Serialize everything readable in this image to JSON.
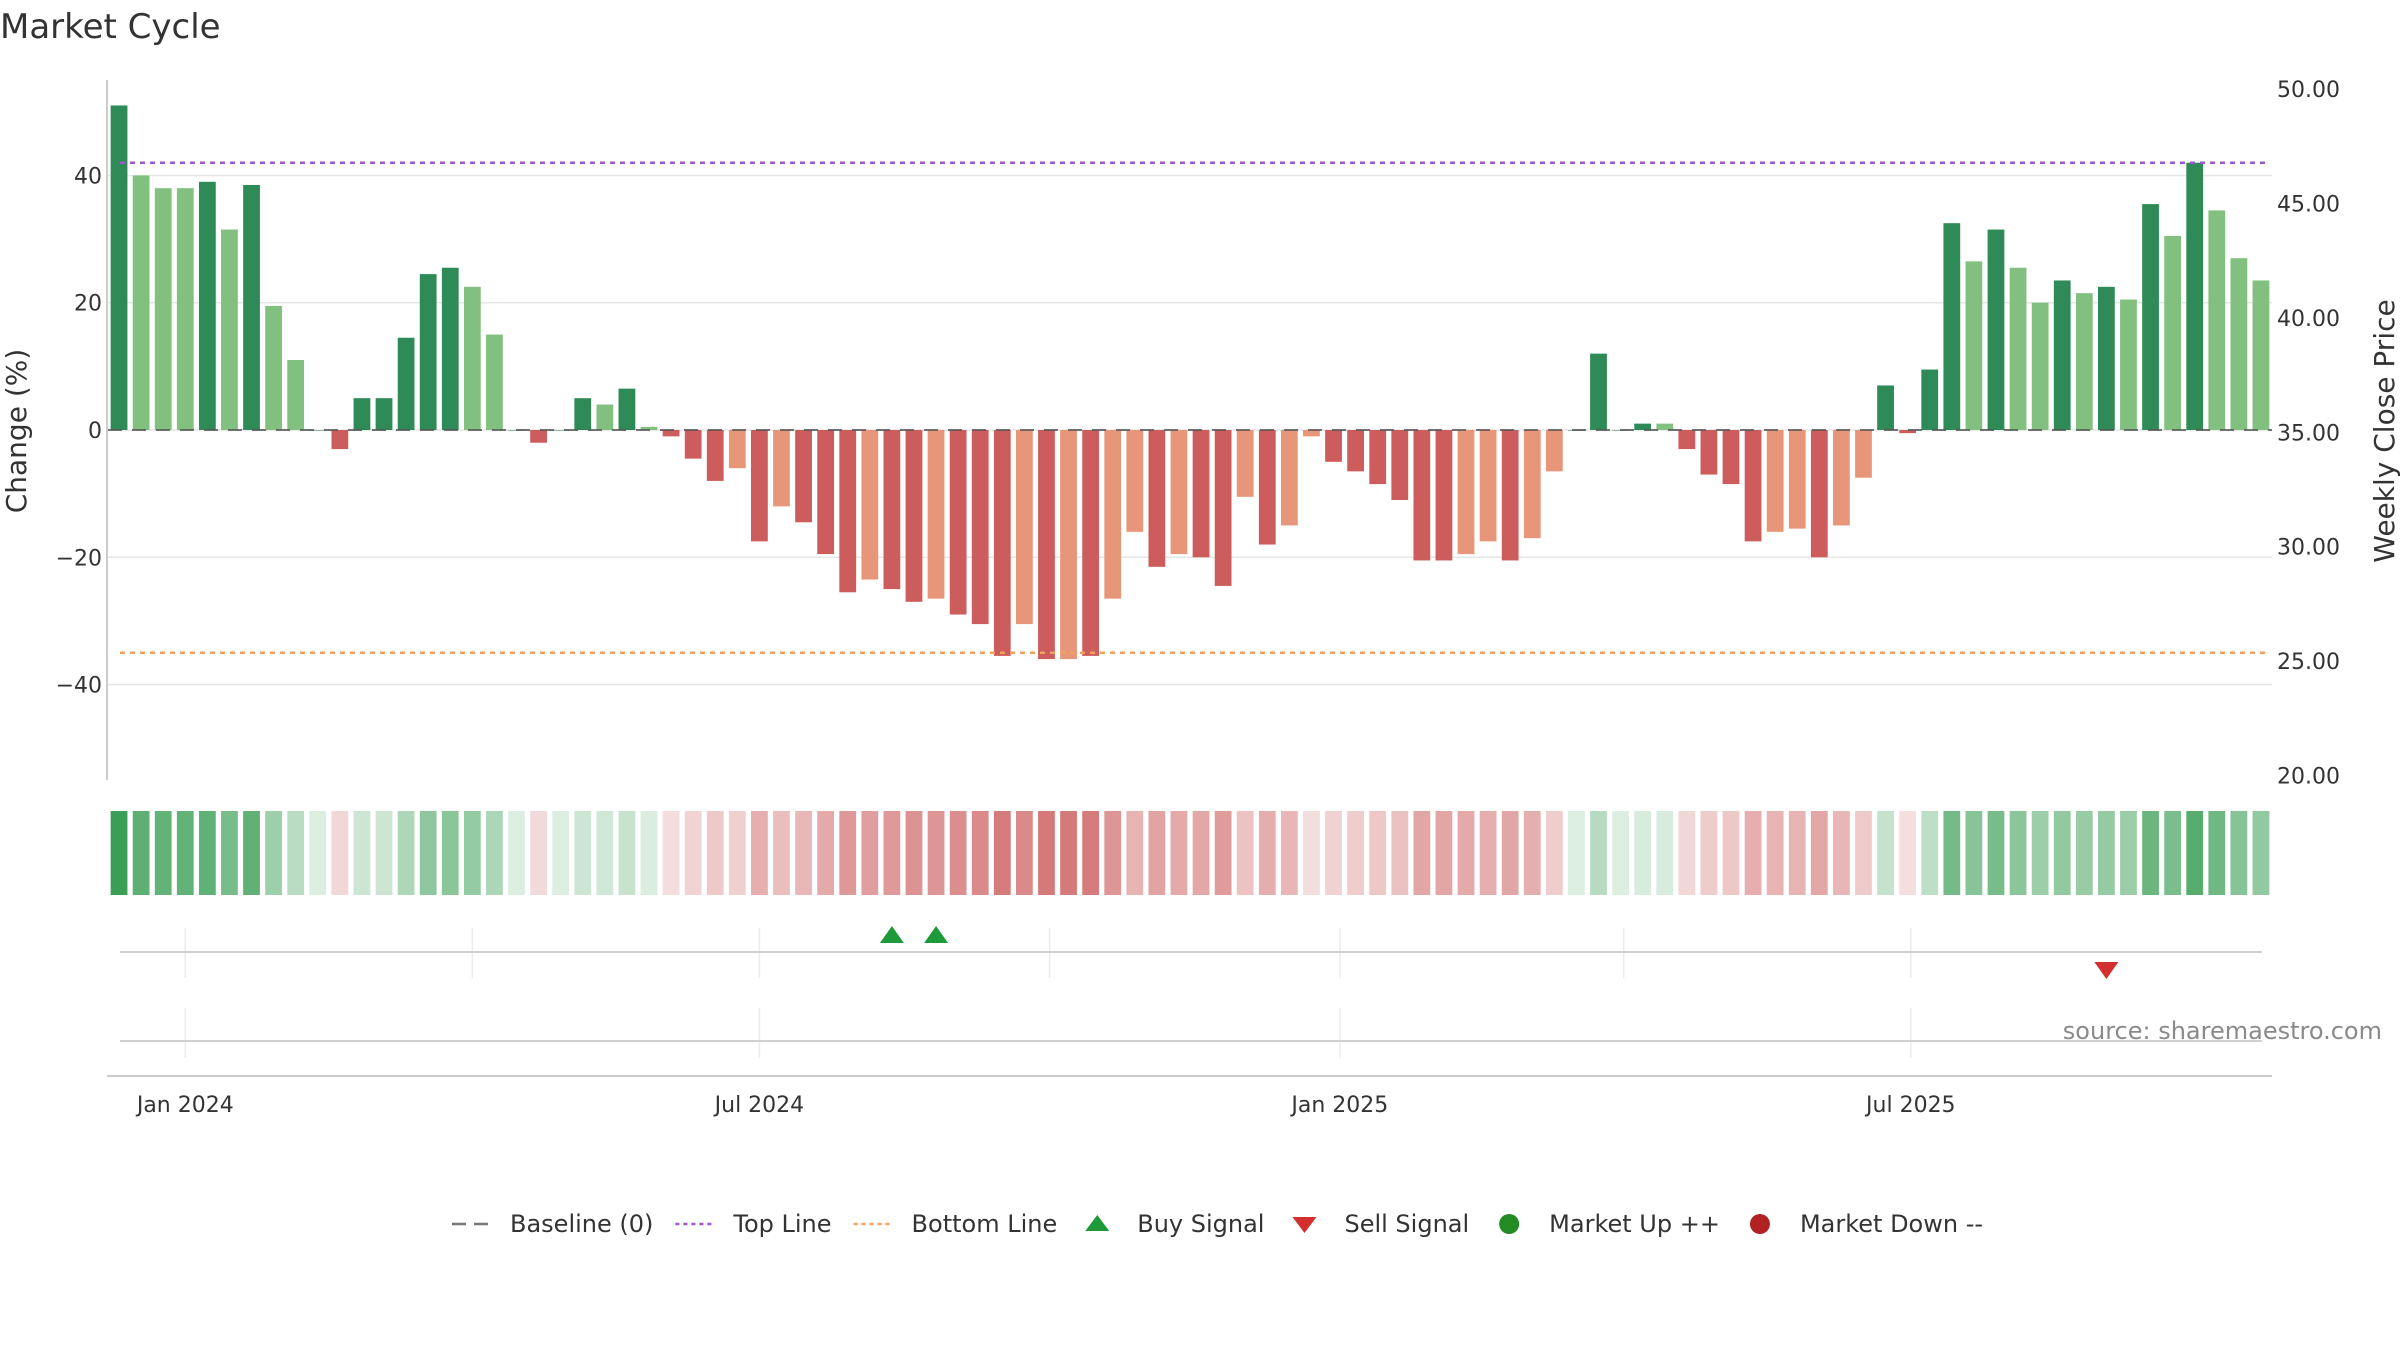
{
  "chart_data": {
    "type": "bar",
    "title": "Market Cycle",
    "ylabel": "Change (%)",
    "y2label": "Weekly Close Price",
    "ylim": [
      -55,
      55
    ],
    "y2lim": [
      19.8,
      50.4
    ],
    "yticks": [
      -40,
      -20,
      0,
      20,
      40
    ],
    "y2ticks": [
      "20.00",
      "25.00",
      "30.00",
      "35.00",
      "40.00",
      "45.00",
      "50.00"
    ],
    "top_line": 42,
    "bottom_line": -35,
    "x_start": "2023-12-11",
    "x_step_days": 7,
    "x_tick_labels": [
      {
        "label": "Jan 2024",
        "date": "2024-01-01"
      },
      {
        "label": "Jul 2024",
        "date": "2024-07-01"
      },
      {
        "label": "Jan 2025",
        "date": "2025-01-01"
      },
      {
        "label": "Jul 2025",
        "date": "2025-07-01"
      }
    ],
    "values": [
      51,
      40,
      38,
      38,
      39,
      31.5,
      38.5,
      19.5,
      11,
      0,
      -3,
      5,
      5,
      14.5,
      24.5,
      25.5,
      22.5,
      15,
      0,
      -2,
      0,
      5,
      4,
      6.5,
      0.5,
      -1,
      -4.5,
      -8,
      -6,
      -17.5,
      -12,
      -14.5,
      -19.5,
      -25.5,
      -23.5,
      -25,
      -27,
      -26.5,
      -29,
      -30.5,
      -35.5,
      -30.5,
      -36,
      -36,
      -35.5,
      -26.5,
      -16,
      -21.5,
      -19.5,
      -20,
      -24.5,
      -10.5,
      -18,
      -15,
      -1,
      -5,
      -6.5,
      -8.5,
      -11,
      -20.5,
      -20.5,
      -19.5,
      -17.5,
      -20.5,
      -17,
      -6.5,
      0,
      12,
      0,
      1,
      1,
      -3,
      -7,
      -8.5,
      -17.5,
      -16,
      -15.5,
      -20,
      -15,
      -7.5,
      7,
      -0.5,
      9.5,
      32.5,
      26.5,
      31.5,
      25.5,
      20,
      23.5,
      21.5,
      22.5,
      20.5,
      35.5,
      30.5,
      42,
      34.5,
      27,
      23.5
    ],
    "tone_classes": [
      0,
      1,
      1,
      1,
      0,
      1,
      0,
      1,
      1,
      0,
      0,
      0,
      0,
      0,
      0,
      0,
      1,
      1,
      0,
      0,
      0,
      0,
      1,
      0,
      1,
      0,
      0,
      0,
      1,
      0,
      1,
      0,
      0,
      0,
      1,
      0,
      0,
      1,
      0,
      0,
      0,
      1,
      0,
      1,
      0,
      1,
      1,
      0,
      1,
      0,
      0,
      1,
      0,
      1,
      1,
      0,
      0,
      0,
      0,
      0,
      0,
      1,
      1,
      0,
      1,
      1,
      0,
      0,
      0,
      0,
      1,
      0,
      0,
      0,
      0,
      1,
      1,
      0,
      1,
      1,
      0,
      0,
      0,
      0,
      1,
      0,
      1,
      1,
      0,
      1,
      0,
      1,
      0,
      1,
      0,
      1,
      1,
      1
    ],
    "buy_signals": [
      "2024-08-12",
      "2024-08-26"
    ],
    "sell_signals": [
      "2025-09-01"
    ],
    "legend": [
      {
        "label": "Baseline (0)",
        "marker": "dashed-line",
        "color": "#777777"
      },
      {
        "label": "Top Line",
        "marker": "dotted-line",
        "color": "#9b59d0"
      },
      {
        "label": "Bottom Line",
        "marker": "dotted-line",
        "color": "#f0a060"
      },
      {
        "label": "Buy Signal",
        "marker": "triangle-up",
        "color": "#1e9a3a"
      },
      {
        "label": "Sell Signal",
        "marker": "triangle-down",
        "color": "#d32f2f"
      },
      {
        "label": "Market Up ++",
        "marker": "circle",
        "color": "#228b22"
      },
      {
        "label": "Market Down --",
        "marker": "circle",
        "color": "#b22222"
      }
    ],
    "colors": {
      "up_strong": "#2e8b57",
      "up_light": "#82c07f",
      "down_strong": "#cd5c5c",
      "down_light": "#e8967a",
      "top_line": "#9b59d0",
      "bottom_line": "#f0a060",
      "heat_green_base": "#3a9e55",
      "heat_red_base": "#c85050"
    },
    "source": "source: sharemaestro.com",
    "grid": true,
    "legend_position": "bottom"
  }
}
